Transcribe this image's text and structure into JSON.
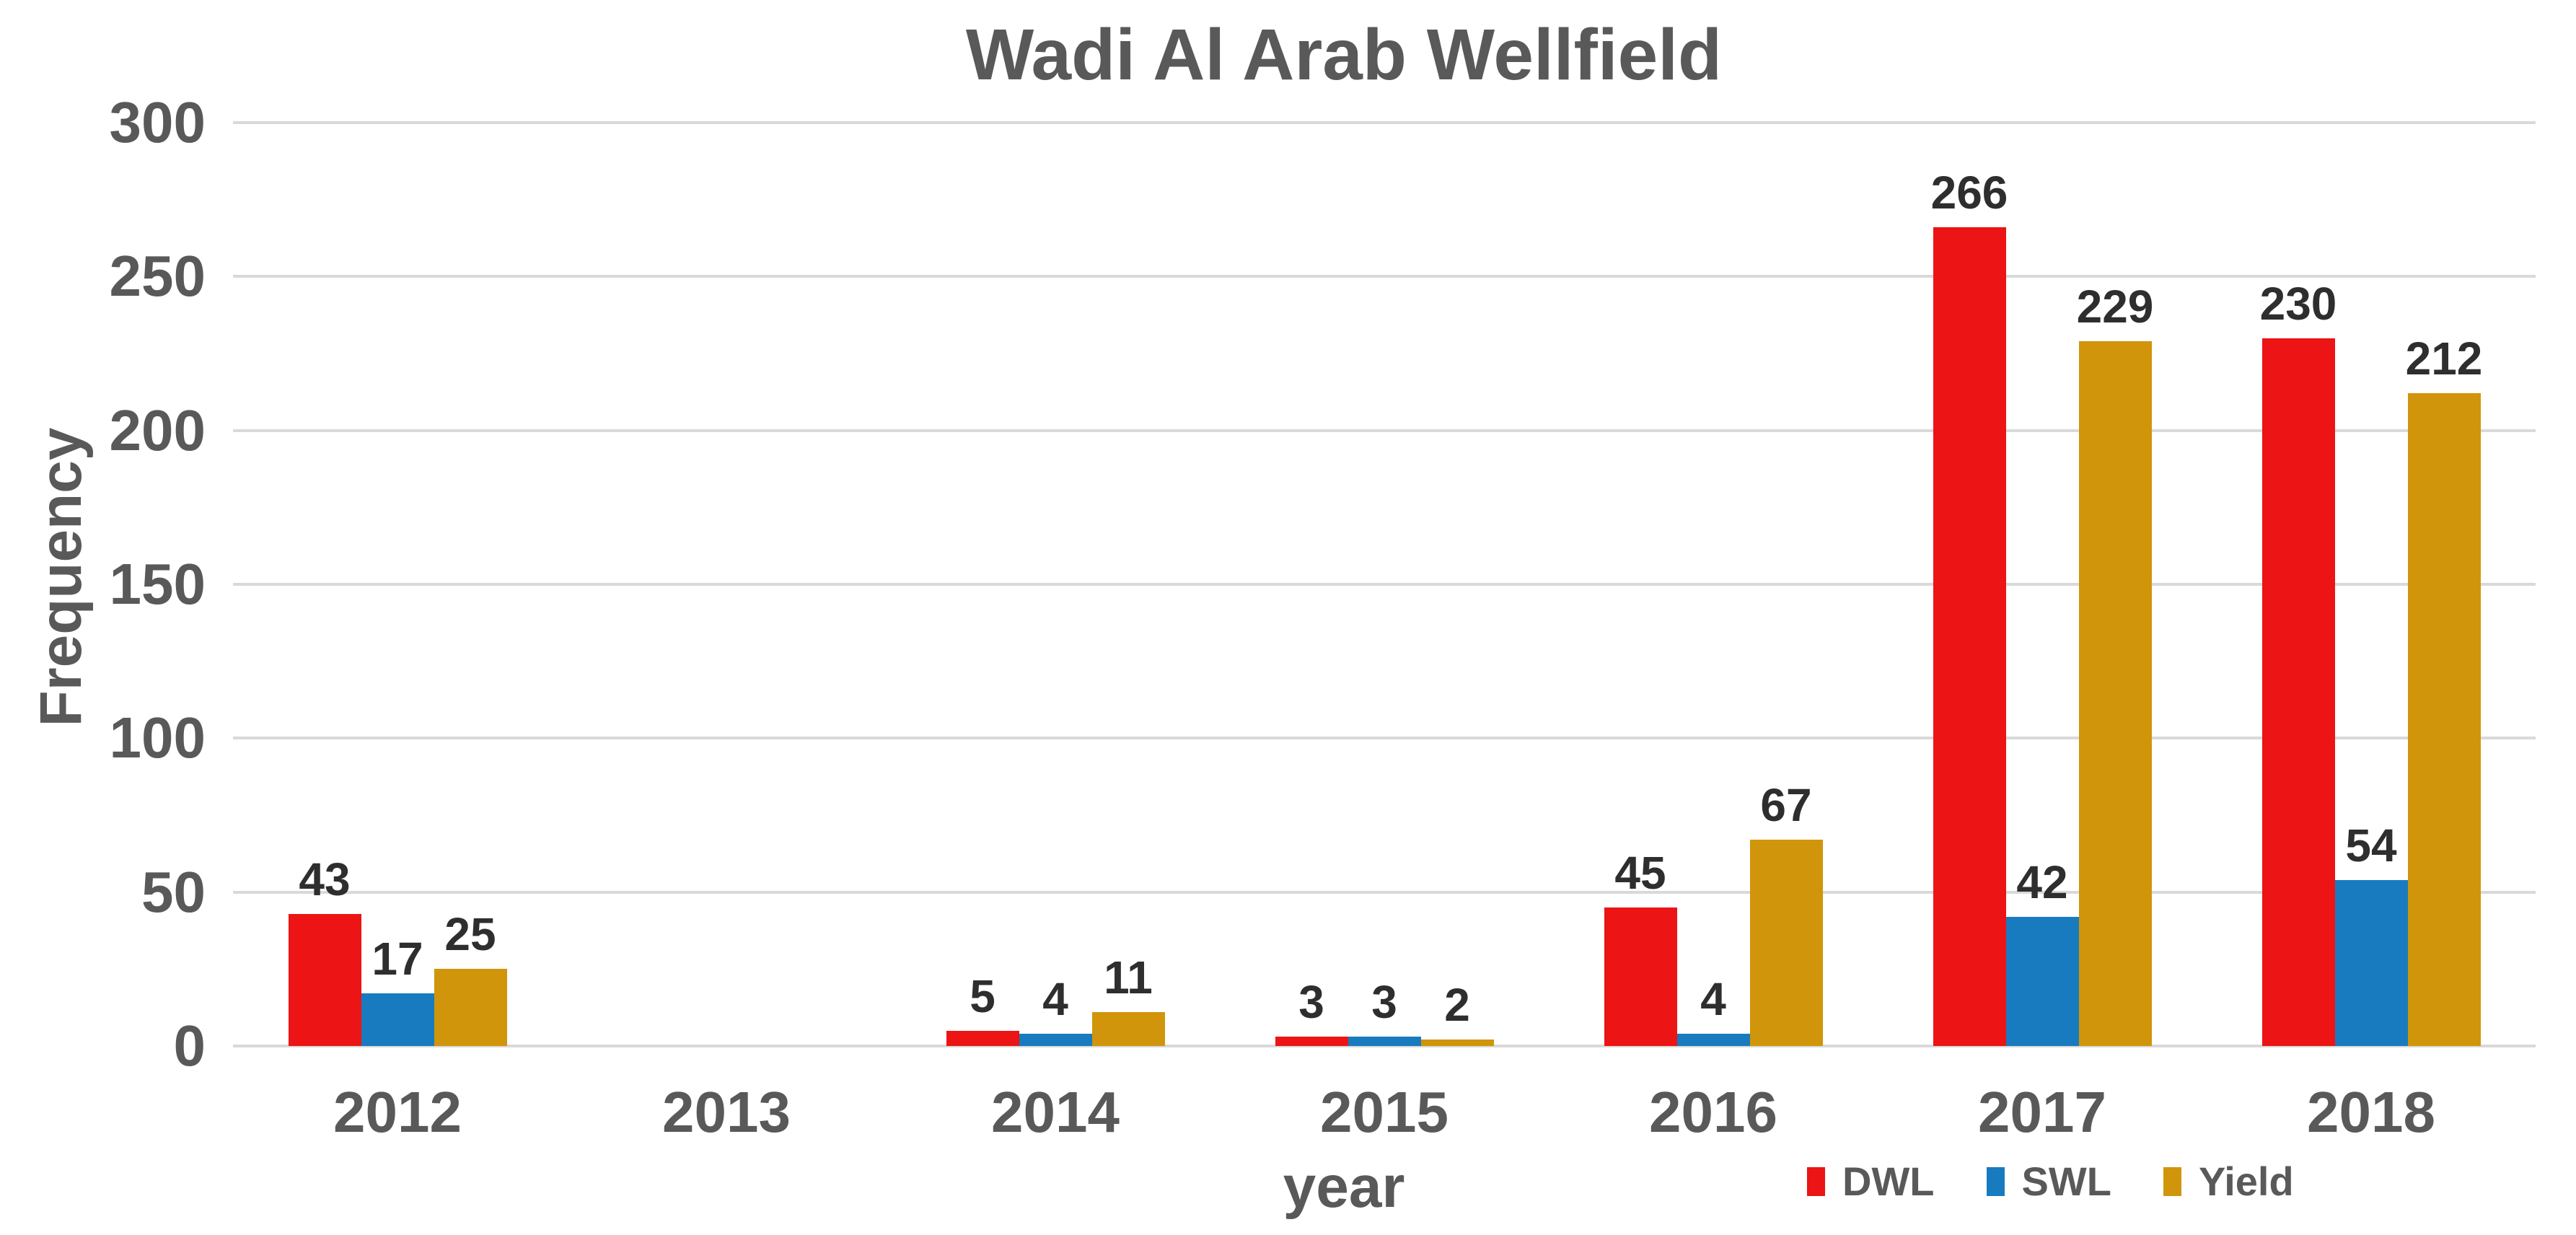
{
  "chart_data": {
    "type": "bar",
    "title": "Wadi Al Arab Wellfield",
    "xlabel": "year",
    "ylabel": "Frequency",
    "categories": [
      "2012",
      "2013",
      "2014",
      "2015",
      "2016",
      "2017",
      "2018"
    ],
    "series": [
      {
        "name": "DWL",
        "color": "#ec1414",
        "values": [
          43,
          0,
          5,
          3,
          45,
          266,
          230
        ]
      },
      {
        "name": "SWL",
        "color": "#187bbf",
        "values": [
          17,
          0,
          4,
          3,
          4,
          42,
          54
        ]
      },
      {
        "name": "Yield",
        "color": "#d0950a",
        "values": [
          25,
          0,
          11,
          2,
          67,
          229,
          212
        ]
      }
    ],
    "ylim": [
      0,
      300
    ],
    "yticks": [
      0,
      50,
      100,
      150,
      200,
      250,
      300
    ],
    "grid": true,
    "value_labels_shown": true,
    "legend_position": "bottom-right",
    "colors": {
      "gridline": "#d9d9d9",
      "axis_text": "#595959",
      "value_label_text": "#2e2e2e",
      "background": "#ffffff"
    }
  }
}
